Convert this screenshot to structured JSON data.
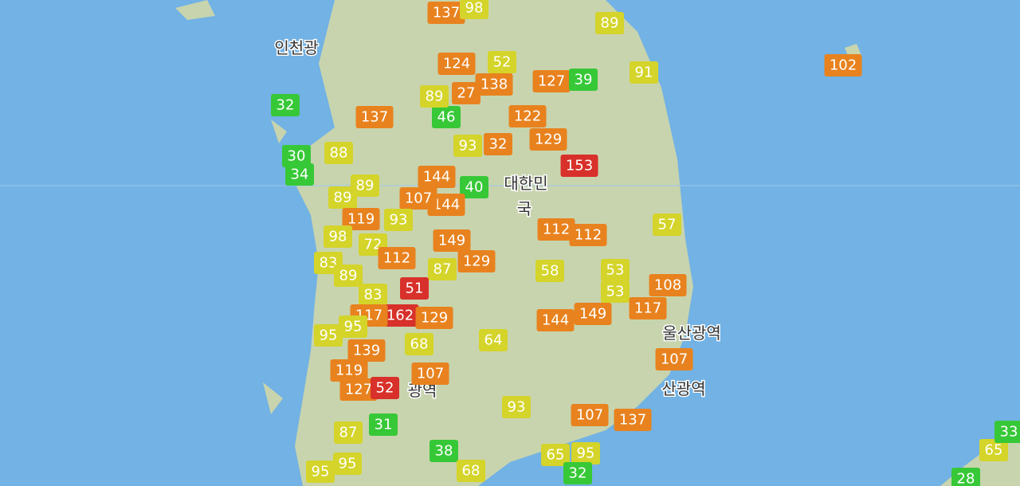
{
  "places": [
    "인천광",
    "대한민",
    "국",
    "울산광역",
    "산광역",
    "광역"
  ],
  "markers": [
    {
      "value": 137,
      "color": "#e8821e"
    },
    {
      "value": 98,
      "color": "#d4d42a"
    },
    {
      "value": 89,
      "color": "#d4d42a"
    },
    {
      "value": 124,
      "color": "#e8821e"
    },
    {
      "value": 52,
      "color": "#d4d42a"
    },
    {
      "value": 138,
      "color": "#e8821e"
    },
    {
      "value": 127,
      "color": "#e8821e"
    },
    {
      "value": 39,
      "color": "#37c837"
    },
    {
      "value": 91,
      "color": "#d4d42a"
    },
    {
      "value": 102,
      "color": "#e8821e"
    },
    {
      "value": 32,
      "color": "#37c837"
    },
    {
      "value": 46,
      "color": "#37c837"
    },
    {
      "value": 137,
      "color": "#e8821e"
    },
    {
      "value": 89,
      "color": "#d4d42a"
    },
    {
      "value": 27,
      "color": "#e8821e"
    },
    {
      "value": 122,
      "color": "#e8821e"
    },
    {
      "value": 129,
      "color": "#e8821e"
    },
    {
      "value": 32,
      "color": "#e8821e"
    },
    {
      "value": 93,
      "color": "#d4d42a"
    },
    {
      "value": 153,
      "color": "#d8302a"
    },
    {
      "value": 30,
      "color": "#37c837"
    },
    {
      "value": 34,
      "color": "#37c837"
    },
    {
      "value": 88,
      "color": "#d4d42a"
    },
    {
      "value": 89,
      "color": "#d4d42a"
    },
    {
      "value": 89,
      "color": "#d4d42a"
    },
    {
      "value": 40,
      "color": "#37c837"
    },
    {
      "value": 144,
      "color": "#e8821e"
    },
    {
      "value": 107,
      "color": "#e8821e"
    },
    {
      "value": 144,
      "color": "#e8821e"
    },
    {
      "value": 119,
      "color": "#e8821e"
    },
    {
      "value": 93,
      "color": "#d4d42a"
    },
    {
      "value": 98,
      "color": "#d4d42a"
    },
    {
      "value": 72,
      "color": "#d4d42a"
    },
    {
      "value": 149,
      "color": "#e8821e"
    },
    {
      "value": 112,
      "color": "#e8821e"
    },
    {
      "value": 87,
      "color": "#d4d42a"
    },
    {
      "value": 129,
      "color": "#e8821e"
    },
    {
      "value": 112,
      "color": "#e8821e"
    },
    {
      "value": 112,
      "color": "#e8821e"
    },
    {
      "value": 57,
      "color": "#d4d42a"
    },
    {
      "value": 83,
      "color": "#d4d42a"
    },
    {
      "value": 89,
      "color": "#d4d42a"
    },
    {
      "value": 58,
      "color": "#d4d42a"
    },
    {
      "value": 53,
      "color": "#d4d42a"
    },
    {
      "value": 53,
      "color": "#d4d42a"
    },
    {
      "value": 108,
      "color": "#e8821e"
    },
    {
      "value": 117,
      "color": "#e8821e"
    },
    {
      "value": 51,
      "color": "#d8302a"
    },
    {
      "value": 83,
      "color": "#d4d42a"
    },
    {
      "value": 162,
      "color": "#d8302a"
    },
    {
      "value": 117,
      "color": "#e8821e"
    },
    {
      "value": 129,
      "color": "#e8821e"
    },
    {
      "value": 144,
      "color": "#e8821e"
    },
    {
      "value": 149,
      "color": "#e8821e"
    },
    {
      "value": 95,
      "color": "#d4d42a"
    },
    {
      "value": 95,
      "color": "#d4d42a"
    },
    {
      "value": 64,
      "color": "#d4d42a"
    },
    {
      "value": 68,
      "color": "#d4d42a"
    },
    {
      "value": 139,
      "color": "#e8821e"
    },
    {
      "value": 107,
      "color": "#e8821e"
    },
    {
      "value": 119,
      "color": "#e8821e"
    },
    {
      "value": 107,
      "color": "#e8821e"
    },
    {
      "value": 127,
      "color": "#e8821e"
    },
    {
      "value": 52,
      "color": "#d8302a"
    },
    {
      "value": 93,
      "color": "#d4d42a"
    },
    {
      "value": 107,
      "color": "#e8821e"
    },
    {
      "value": 137,
      "color": "#e8821e"
    },
    {
      "value": 31,
      "color": "#37c837"
    },
    {
      "value": 87,
      "color": "#d4d42a"
    },
    {
      "value": 38,
      "color": "#37c837"
    },
    {
      "value": 65,
      "color": "#d4d42a"
    },
    {
      "value": 95,
      "color": "#d4d42a"
    },
    {
      "value": 68,
      "color": "#d4d42a"
    },
    {
      "value": 95,
      "color": "#d4d42a"
    },
    {
      "value": 95,
      "color": "#d4d42a"
    },
    {
      "value": 32,
      "color": "#37c837"
    },
    {
      "value": 65,
      "color": "#d4d42a"
    },
    {
      "value": 28,
      "color": "#37c837"
    },
    {
      "value": 33,
      "color": "#37c837"
    }
  ]
}
